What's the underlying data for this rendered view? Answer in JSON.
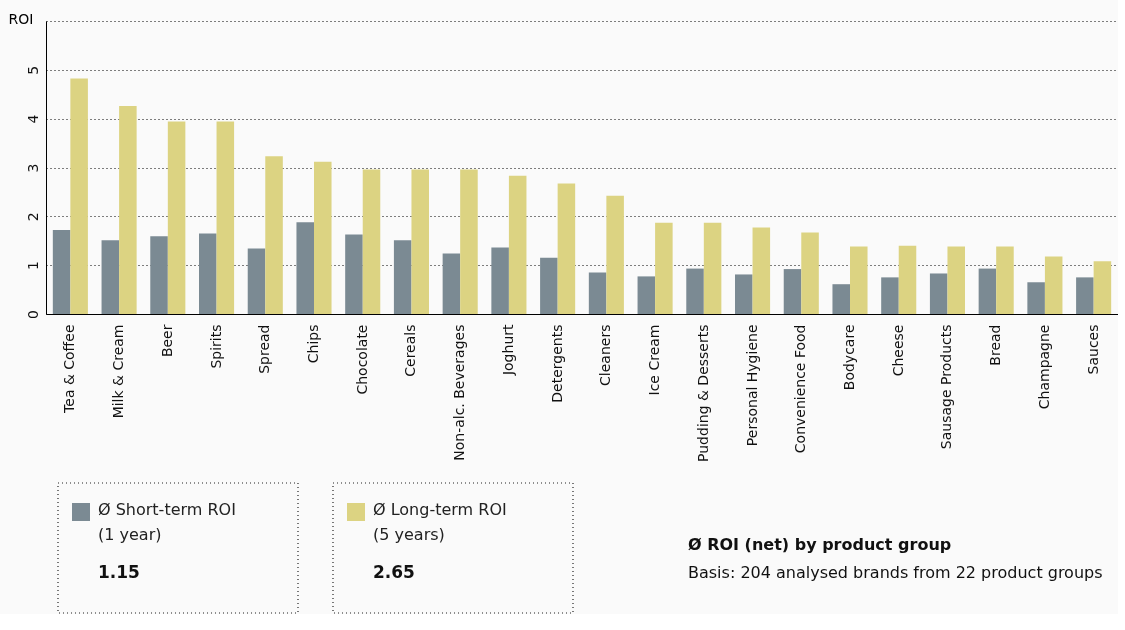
{
  "chart_data": {
    "type": "bar",
    "ylabel": "ROI",
    "categories": [
      "Tea & Coffee",
      "Milk & Cream",
      "Beer",
      "Spirits",
      "Spread",
      "Chips",
      "Chocolate",
      "Cereals",
      "Non-alc. Beverages",
      "Joghurt",
      "Detergents",
      "Cleaners",
      "Ice Cream",
      "Pudding & Desserts",
      "Personal Hygiene",
      "Convenience Food",
      "Bodycare",
      "Cheese",
      "Sausage Products",
      "Bread",
      "Champagne",
      "Sauces"
    ],
    "series": [
      {
        "name": "Ø Short-term ROI\n(1 year)",
        "color": "#7b8a93",
        "values": [
          1.72,
          1.51,
          1.59,
          1.65,
          1.34,
          1.88,
          1.63,
          1.51,
          1.24,
          1.36,
          1.15,
          0.85,
          0.77,
          0.93,
          0.81,
          0.92,
          0.61,
          0.75,
          0.83,
          0.93,
          0.65,
          0.75
        ]
      },
      {
        "name": "Ø Long-term ROI\n(5 years)",
        "color": "#dcd382",
        "values": [
          4.82,
          4.26,
          3.94,
          3.94,
          3.23,
          3.12,
          2.96,
          2.96,
          2.96,
          2.83,
          2.67,
          2.42,
          1.87,
          1.87,
          1.77,
          1.67,
          1.38,
          1.4,
          1.38,
          1.38,
          1.18,
          1.08
        ]
      }
    ],
    "ylim": [
      0,
      6
    ],
    "yticks": [
      0,
      1,
      2,
      3,
      4,
      5,
      {
        "value": 6,
        "label": null
      }
    ],
    "grid": "y",
    "legend": "bottom left",
    "annotations": [
      "1.15",
      "2.65",
      "Ø ROI (net) by product group",
      "Basis: 204 analysed brands from 22 product groups"
    ]
  }
}
